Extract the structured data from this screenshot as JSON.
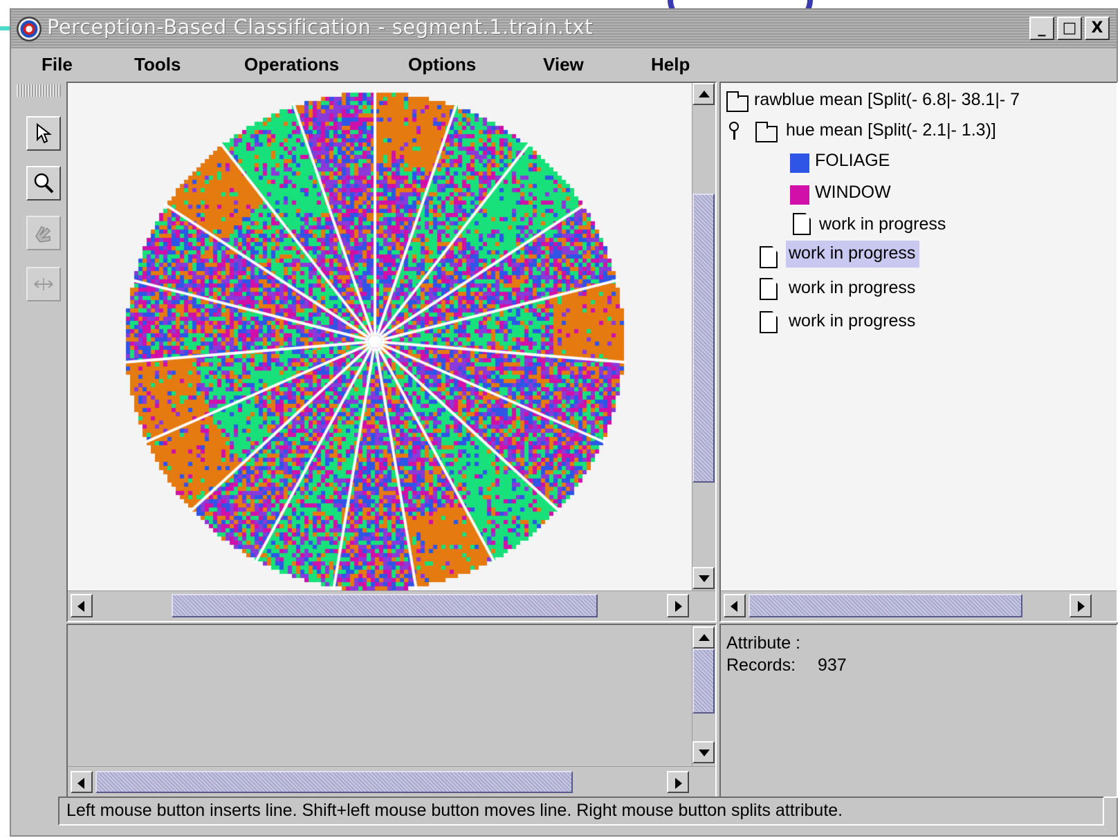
{
  "window": {
    "title": "Perception-Based Classification - segment.1.train.txt",
    "controls": [
      "_",
      "□",
      "X"
    ]
  },
  "menu": [
    {
      "label": "File"
    },
    {
      "label": "Tools"
    },
    {
      "label": "Operations"
    },
    {
      "label": "Options"
    },
    {
      "label": "View"
    },
    {
      "label": "Help"
    }
  ],
  "toolbar": {
    "tools": [
      {
        "icon": "arrow-pointer-icon",
        "enabled": true
      },
      {
        "icon": "magnifier-icon",
        "enabled": true
      },
      {
        "icon": "hand-icon",
        "enabled": false
      },
      {
        "icon": "resize-arrows-icon",
        "enabled": false
      }
    ]
  },
  "tree": {
    "root": "rawblue mean [Split(- 6.8|- 38.1|- 7",
    "child": "hue mean [Split(- 2.1|- 1.3)]",
    "leaves": [
      {
        "label": "FOLIAGE",
        "color": "#2f55e6"
      },
      {
        "label": "WINDOW",
        "color": "#d010a8"
      }
    ],
    "wip_nested": "work in progress",
    "wip_items": [
      "work in progress",
      "work in progress",
      "work in progress"
    ]
  },
  "info": {
    "attribute_label": "Attribute :",
    "records_label": "Records:",
    "records_value": "937"
  },
  "status_text": "Left mouse button inserts line. Shift+left mouse button moves line. Right mouse button splits attribute.",
  "colors": {
    "orange": "#e57a10",
    "green": "#18e07a",
    "blue": "#2f55e6",
    "magenta": "#d010a8",
    "purple": "#8a3ad8",
    "selection": "#c8c8f0"
  }
}
